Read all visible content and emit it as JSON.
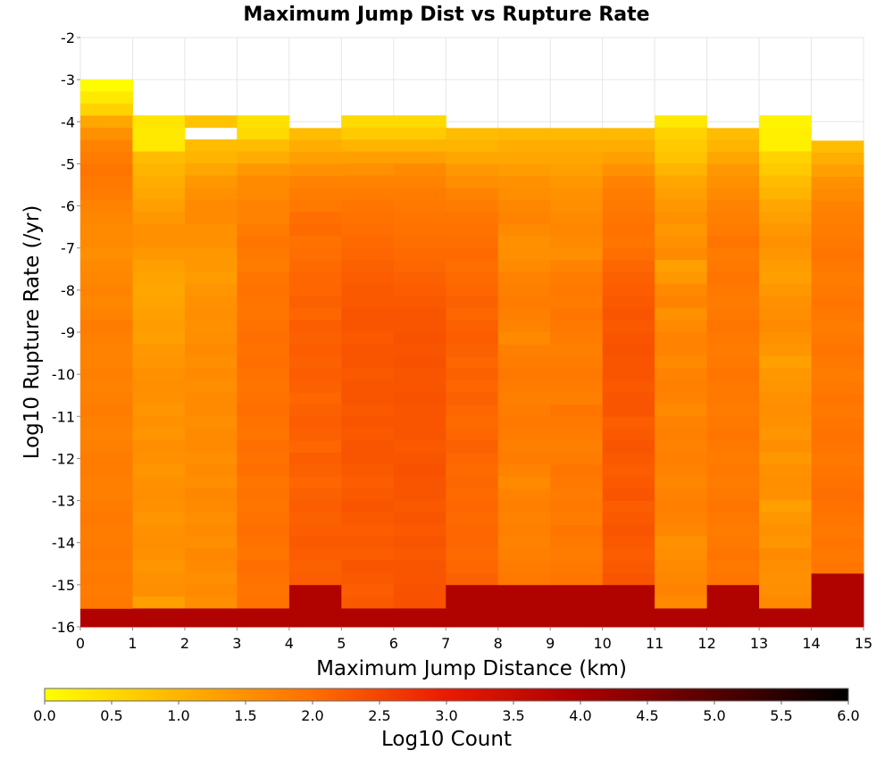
{
  "chart_data": {
    "type": "heatmap",
    "title": "Maximum Jump Dist vs Rupture Rate",
    "xlabel": "Maximum Jump Distance (km)",
    "ylabel": "Log10 Rupture Rate (/yr)",
    "xlim": [
      0,
      15
    ],
    "ylim": [
      -16,
      -2
    ],
    "x_ticks": [
      "0",
      "1",
      "2",
      "3",
      "4",
      "5",
      "6",
      "7",
      "8",
      "9",
      "10",
      "11",
      "12",
      "13",
      "14",
      "15"
    ],
    "y_ticks": [
      "-2",
      "-3",
      "-4",
      "-5",
      "-6",
      "-7",
      "-8",
      "-9",
      "-10",
      "-11",
      "-12",
      "-13",
      "-14",
      "-15",
      "-16"
    ],
    "x_bin_width_km": 1,
    "y_bin_width": 0.2857,
    "grid": true,
    "colorbar": {
      "label": "Log10 Count",
      "range": [
        0.0,
        6.0
      ],
      "ticks": [
        "0.0",
        "0.5",
        "1.0",
        "1.5",
        "2.0",
        "2.5",
        "3.0",
        "3.5",
        "4.0",
        "4.5",
        "5.0",
        "5.5",
        "6.0"
      ],
      "colormap_stops": [
        {
          "value": 0.0,
          "color": "#ffff00"
        },
        {
          "value": 1.0,
          "color": "#ffb400"
        },
        {
          "value": 2.0,
          "color": "#ff6e00"
        },
        {
          "value": 3.0,
          "color": "#ea1a00"
        },
        {
          "value": 4.0,
          "color": "#aa0000"
        },
        {
          "value": 5.0,
          "color": "#550000"
        },
        {
          "value": 6.0,
          "color": "#000000"
        }
      ]
    },
    "columns": [
      {
        "x_range": [
          0,
          1
        ],
        "y_top": -3.0,
        "values": [
          0.05,
          0.3,
          0.6,
          1.2,
          1.5,
          1.7,
          1.8,
          1.9,
          1.85,
          1.8,
          1.7,
          1.65,
          1.6,
          1.6,
          1.55,
          1.6,
          1.65,
          1.7,
          1.65,
          1.7,
          1.8,
          1.75,
          1.7,
          1.7,
          1.75,
          1.7,
          1.75,
          1.8,
          1.75,
          1.7,
          1.75,
          1.8,
          1.8,
          1.75,
          1.75,
          1.8,
          1.85,
          1.8,
          1.8,
          1.85,
          1.8,
          1.85,
          1.8,
          1.85,
          3.9
        ]
      },
      {
        "x_range": [
          1,
          2
        ],
        "y_top": -3.85,
        "values": [
          0.35,
          0.3,
          0.3,
          0.9,
          1.0,
          1.1,
          1.2,
          1.3,
          1.4,
          1.5,
          1.5,
          1.4,
          1.3,
          1.25,
          1.2,
          1.25,
          1.3,
          1.35,
          1.3,
          1.4,
          1.45,
          1.5,
          1.55,
          1.5,
          1.45,
          1.5,
          1.45,
          1.55,
          1.5,
          1.45,
          1.5,
          1.55,
          1.5,
          1.45,
          1.5,
          1.55,
          1.5,
          1.45,
          1.5,
          1.55,
          1.3,
          3.9
        ]
      },
      {
        "x_range": [
          2,
          3
        ],
        "y_top": -3.85,
        "values": [
          0.8,
          null,
          0.9,
          1.0,
          1.2,
          1.4,
          1.5,
          1.6,
          1.6,
          1.5,
          1.5,
          1.4,
          1.4,
          1.35,
          1.45,
          1.5,
          1.55,
          1.5,
          1.55,
          1.6,
          1.55,
          1.6,
          1.55,
          1.6,
          1.6,
          1.55,
          1.6,
          1.6,
          1.55,
          1.6,
          1.55,
          1.65,
          1.6,
          1.55,
          1.6,
          1.55,
          1.65,
          1.6,
          1.55,
          1.6,
          1.55,
          3.9
        ]
      },
      {
        "x_range": [
          3,
          4
        ],
        "y_top": -3.85,
        "values": [
          0.4,
          0.5,
          0.9,
          1.1,
          1.4,
          1.6,
          1.6,
          1.7,
          1.7,
          1.8,
          1.9,
          1.85,
          1.8,
          1.9,
          1.95,
          1.9,
          1.9,
          1.95,
          2.0,
          1.95,
          2.0,
          1.95,
          1.9,
          1.95,
          2.0,
          1.95,
          1.9,
          2.0,
          1.95,
          2.0,
          1.9,
          1.95,
          1.9,
          1.95,
          2.0,
          1.95,
          1.9,
          2.0,
          1.95,
          1.9,
          1.95,
          3.9
        ]
      },
      {
        "x_range": [
          4,
          5
        ],
        "y_top": -4.15,
        "values": [
          0.9,
          1.1,
          1.3,
          1.5,
          1.7,
          1.8,
          1.85,
          2.0,
          2.05,
          1.95,
          2.0,
          2.05,
          2.1,
          2.1,
          2.15,
          2.1,
          2.2,
          2.15,
          2.2,
          2.15,
          2.2,
          2.15,
          2.1,
          2.15,
          2.2,
          2.15,
          2.1,
          2.2,
          2.15,
          2.1,
          2.15,
          2.2,
          2.15,
          2.2,
          2.25,
          2.2,
          2.15,
          2.2,
          3.9
        ]
      },
      {
        "x_range": [
          5,
          6
        ],
        "y_top": -3.85,
        "values": [
          0.5,
          0.7,
          1.0,
          1.3,
          1.5,
          1.7,
          1.8,
          1.9,
          1.95,
          2.0,
          2.05,
          2.1,
          2.15,
          2.2,
          2.25,
          2.25,
          2.3,
          2.3,
          2.25,
          2.3,
          2.3,
          2.25,
          2.3,
          2.3,
          2.25,
          2.3,
          2.25,
          2.3,
          2.3,
          2.25,
          2.2,
          2.25,
          2.3,
          2.25,
          2.2,
          2.25,
          2.2,
          2.3,
          2.25,
          2.2,
          2.25,
          3.9
        ]
      },
      {
        "x_range": [
          6,
          7
        ],
        "y_top": -3.85,
        "values": [
          0.5,
          0.7,
          1.0,
          1.3,
          1.6,
          1.7,
          1.8,
          1.85,
          1.9,
          1.95,
          2.0,
          2.05,
          2.1,
          2.15,
          2.2,
          2.25,
          2.3,
          2.3,
          2.35,
          2.3,
          2.35,
          2.3,
          2.3,
          2.35,
          2.3,
          2.3,
          2.3,
          2.25,
          2.3,
          2.35,
          2.3,
          2.3,
          2.25,
          2.3,
          2.25,
          2.3,
          2.25,
          2.3,
          2.3,
          2.35,
          2.35,
          3.9
        ]
      },
      {
        "x_range": [
          7,
          8
        ],
        "y_top": -4.15,
        "values": [
          0.9,
          1.0,
          1.2,
          1.4,
          1.55,
          1.7,
          1.8,
          1.9,
          1.95,
          2.0,
          2.05,
          2.0,
          2.05,
          2.1,
          2.15,
          2.1,
          2.15,
          2.2,
          2.15,
          2.1,
          2.15,
          2.1,
          2.15,
          2.1,
          2.05,
          2.1,
          2.15,
          2.1,
          2.05,
          2.1,
          2.05,
          2.1,
          2.05,
          2.1,
          2.1,
          2.05,
          2.1,
          2.15,
          3.9
        ]
      },
      {
        "x_range": [
          8,
          9
        ],
        "y_top": -4.15,
        "values": [
          0.95,
          1.1,
          1.2,
          1.35,
          1.5,
          1.55,
          1.65,
          1.7,
          1.6,
          1.5,
          1.55,
          1.6,
          1.7,
          1.75,
          1.8,
          1.75,
          1.7,
          1.6,
          1.75,
          1.8,
          1.85,
          1.8,
          1.75,
          1.8,
          1.85,
          1.8,
          1.75,
          1.8,
          1.7,
          1.6,
          1.7,
          1.75,
          1.7,
          1.75,
          1.7,
          1.75,
          1.8,
          1.85,
          3.9
        ]
      },
      {
        "x_range": [
          9,
          10
        ],
        "y_top": -4.15,
        "values": [
          0.95,
          1.1,
          1.2,
          1.3,
          1.4,
          1.5,
          1.55,
          1.6,
          1.65,
          1.6,
          1.55,
          1.7,
          1.8,
          1.85,
          1.8,
          1.9,
          1.85,
          1.8,
          1.75,
          1.8,
          1.85,
          1.8,
          1.75,
          1.9,
          1.85,
          1.8,
          1.75,
          1.8,
          1.9,
          1.85,
          1.8,
          1.85,
          1.8,
          1.9,
          1.85,
          1.8,
          1.85,
          1.9,
          3.9
        ]
      },
      {
        "x_range": [
          10,
          11
        ],
        "y_top": -4.15,
        "values": [
          0.95,
          1.1,
          1.3,
          1.5,
          1.7,
          1.8,
          1.85,
          1.9,
          1.95,
          1.9,
          2.0,
          2.1,
          2.15,
          2.2,
          2.25,
          2.3,
          2.25,
          2.3,
          2.35,
          2.3,
          2.3,
          2.25,
          2.3,
          2.3,
          2.2,
          2.25,
          2.3,
          2.25,
          2.2,
          2.25,
          2.3,
          2.2,
          2.25,
          2.3,
          2.25,
          2.2,
          2.25,
          2.3,
          3.9
        ]
      },
      {
        "x_range": [
          11,
          12
        ],
        "y_top": -3.85,
        "values": [
          0.3,
          0.6,
          0.7,
          0.8,
          1.0,
          1.2,
          1.3,
          1.4,
          1.5,
          1.4,
          1.5,
          1.6,
          1.3,
          1.4,
          1.6,
          1.7,
          1.5,
          1.6,
          1.7,
          1.7,
          1.6,
          1.7,
          1.75,
          1.7,
          1.6,
          1.7,
          1.75,
          1.7,
          1.75,
          1.7,
          1.65,
          1.7,
          1.75,
          1.7,
          1.65,
          1.5,
          1.55,
          1.6,
          1.65,
          1.7,
          1.6,
          3.9
        ]
      },
      {
        "x_range": [
          12,
          13
        ],
        "y_top": -4.15,
        "values": [
          0.9,
          1.0,
          1.2,
          1.4,
          1.5,
          1.6,
          1.7,
          1.75,
          1.8,
          1.9,
          1.8,
          1.85,
          1.9,
          1.85,
          1.8,
          1.85,
          1.9,
          1.85,
          1.8,
          1.85,
          1.9,
          1.85,
          1.85,
          1.8,
          1.85,
          1.9,
          1.85,
          1.8,
          1.85,
          1.8,
          1.85,
          1.9,
          1.85,
          1.8,
          1.85,
          1.9,
          1.85,
          1.9,
          3.9
        ]
      },
      {
        "x_range": [
          13,
          14
        ],
        "y_top": -3.85,
        "values": [
          0.15,
          0.2,
          0.2,
          0.6,
          0.7,
          0.9,
          1.0,
          1.2,
          1.3,
          1.4,
          1.5,
          1.45,
          1.35,
          1.3,
          1.4,
          1.5,
          1.55,
          1.6,
          1.5,
          1.45,
          1.3,
          1.4,
          1.45,
          1.5,
          1.55,
          1.5,
          1.45,
          1.55,
          1.4,
          1.5,
          1.55,
          1.5,
          1.3,
          1.4,
          1.5,
          1.45,
          1.6,
          1.55,
          1.5,
          1.55,
          1.6,
          3.9
        ]
      },
      {
        "x_range": [
          14,
          15
        ],
        "y_top": -4.45,
        "values": [
          0.9,
          1.1,
          1.3,
          1.5,
          1.6,
          1.7,
          1.75,
          1.8,
          1.85,
          1.9,
          1.85,
          1.8,
          1.85,
          1.9,
          1.85,
          1.8,
          1.85,
          1.9,
          1.85,
          1.8,
          1.85,
          1.9,
          1.85,
          1.9,
          1.95,
          1.9,
          1.85,
          1.9,
          1.95,
          2.0,
          1.95,
          1.9,
          1.85,
          1.9,
          1.85,
          1.9,
          3.9
        ]
      }
    ]
  }
}
